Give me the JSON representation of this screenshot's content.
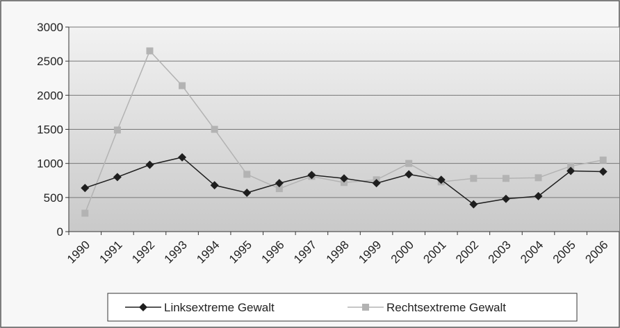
{
  "chart_data": {
    "type": "line",
    "categories": [
      "1990",
      "1991",
      "1992",
      "1993",
      "1994",
      "1995",
      "1996",
      "1997",
      "1998",
      "1999",
      "2000",
      "2001",
      "2002",
      "2003",
      "2004",
      "2005",
      "2006"
    ],
    "series": [
      {
        "name": "Linksextreme Gewalt",
        "color": "#1e1e1e",
        "marker": "diamond",
        "values": [
          640,
          800,
          980,
          1090,
          680,
          570,
          710,
          830,
          780,
          710,
          840,
          760,
          400,
          480,
          520,
          890,
          880
        ]
      },
      {
        "name": "Rechtsextreme Gewalt",
        "color": "#b3b3b3",
        "marker": "square",
        "values": [
          270,
          1490,
          2650,
          2140,
          1500,
          840,
          630,
          810,
          720,
          760,
          1000,
          730,
          780,
          780,
          790,
          960,
          1050
        ]
      }
    ],
    "ylim": [
      0,
      3000
    ],
    "yticks": [
      0,
      500,
      1000,
      1500,
      2000,
      2500,
      3000
    ],
    "grid": true,
    "legend": "bottom"
  }
}
